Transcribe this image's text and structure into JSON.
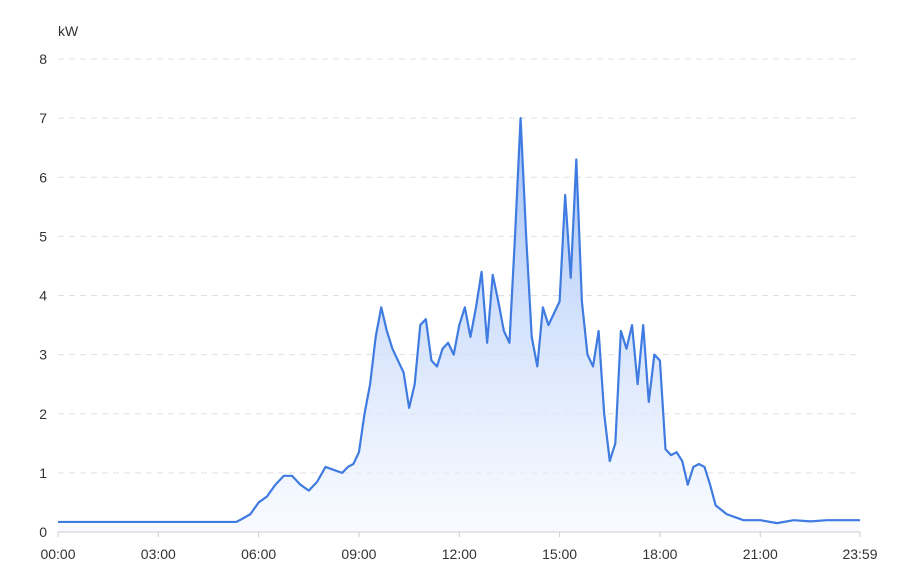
{
  "chart_data": {
    "type": "area",
    "title": "",
    "xlabel": "",
    "ylabel": "kW",
    "ylim": [
      0,
      8
    ],
    "grid": true,
    "legend": "none",
    "y_ticks": [
      "0",
      "1",
      "2",
      "3",
      "4",
      "5",
      "6",
      "7",
      "8"
    ],
    "x_ticks": [
      {
        "label": "00:00",
        "minute": 0
      },
      {
        "label": "03:00",
        "minute": 180
      },
      {
        "label": "06:00",
        "minute": 360
      },
      {
        "label": "09:00",
        "minute": 540
      },
      {
        "label": "12:00",
        "minute": 720
      },
      {
        "label": "15:00",
        "minute": 900
      },
      {
        "label": "18:00",
        "minute": 1080
      },
      {
        "label": "21:00",
        "minute": 1260
      },
      {
        "label": "23:59",
        "minute": 1439
      }
    ],
    "colors": {
      "line": "#3f7be0",
      "fill_top": "#9cbcf7",
      "fill_bottom": "#f4f8ff",
      "grid": "#e0e0e0",
      "axis": "#cccccc"
    },
    "series": [
      {
        "x": [
          "00:00",
          "00:30",
          "01:00",
          "01:30",
          "02:00",
          "02:30",
          "03:00",
          "03:30",
          "04:00",
          "04:30",
          "05:00",
          "05:20",
          "05:30",
          "05:45",
          "06:00",
          "06:15",
          "06:30",
          "06:45",
          "07:00",
          "07:15",
          "07:30",
          "07:45",
          "08:00",
          "08:15",
          "08:30",
          "08:40",
          "08:50",
          "09:00",
          "09:10",
          "09:20",
          "09:30",
          "09:40",
          "09:50",
          "10:00",
          "10:10",
          "10:20",
          "10:30",
          "10:40",
          "10:50",
          "11:00",
          "11:10",
          "11:20",
          "11:30",
          "11:40",
          "11:50",
          "12:00",
          "12:10",
          "12:20",
          "12:30",
          "12:40",
          "12:50",
          "13:00",
          "13:10",
          "13:20",
          "13:30",
          "13:40",
          "13:50",
          "14:00",
          "14:10",
          "14:20",
          "14:30",
          "14:40",
          "14:50",
          "15:00",
          "15:10",
          "15:20",
          "15:30",
          "15:40",
          "15:50",
          "16:00",
          "16:10",
          "16:20",
          "16:30",
          "16:40",
          "16:50",
          "17:00",
          "17:10",
          "17:20",
          "17:30",
          "17:40",
          "17:50",
          "18:00",
          "18:10",
          "18:20",
          "18:30",
          "18:40",
          "18:50",
          "19:00",
          "19:10",
          "19:20",
          "19:30",
          "19:40",
          "20:00",
          "20:30",
          "21:00",
          "21:30",
          "22:00",
          "22:30",
          "23:00",
          "23:30",
          "23:59"
        ],
        "values": [
          0.17,
          0.17,
          0.17,
          0.17,
          0.17,
          0.17,
          0.17,
          0.17,
          0.17,
          0.17,
          0.17,
          0.17,
          0.22,
          0.3,
          0.5,
          0.6,
          0.8,
          0.95,
          0.95,
          0.8,
          0.7,
          0.85,
          1.1,
          1.05,
          1.0,
          1.1,
          1.15,
          1.35,
          2.0,
          2.5,
          3.3,
          3.8,
          3.4,
          3.1,
          2.9,
          2.7,
          2.1,
          2.5,
          3.5,
          3.6,
          2.9,
          2.8,
          3.1,
          3.2,
          3.0,
          3.5,
          3.8,
          3.3,
          3.8,
          4.4,
          3.2,
          4.35,
          3.9,
          3.4,
          3.2,
          5.0,
          7.0,
          5.0,
          3.3,
          2.8,
          3.8,
          3.5,
          3.7,
          3.9,
          5.7,
          4.3,
          6.3,
          3.9,
          3.0,
          2.8,
          3.4,
          2.0,
          1.2,
          1.5,
          3.4,
          3.1,
          3.5,
          2.5,
          3.5,
          2.2,
          3.0,
          2.9,
          1.4,
          1.3,
          1.35,
          1.2,
          0.8,
          1.1,
          1.15,
          1.1,
          0.8,
          0.45,
          0.3,
          0.2,
          0.2,
          0.15,
          0.2,
          0.18,
          0.2,
          0.2,
          0.2
        ]
      }
    ]
  }
}
